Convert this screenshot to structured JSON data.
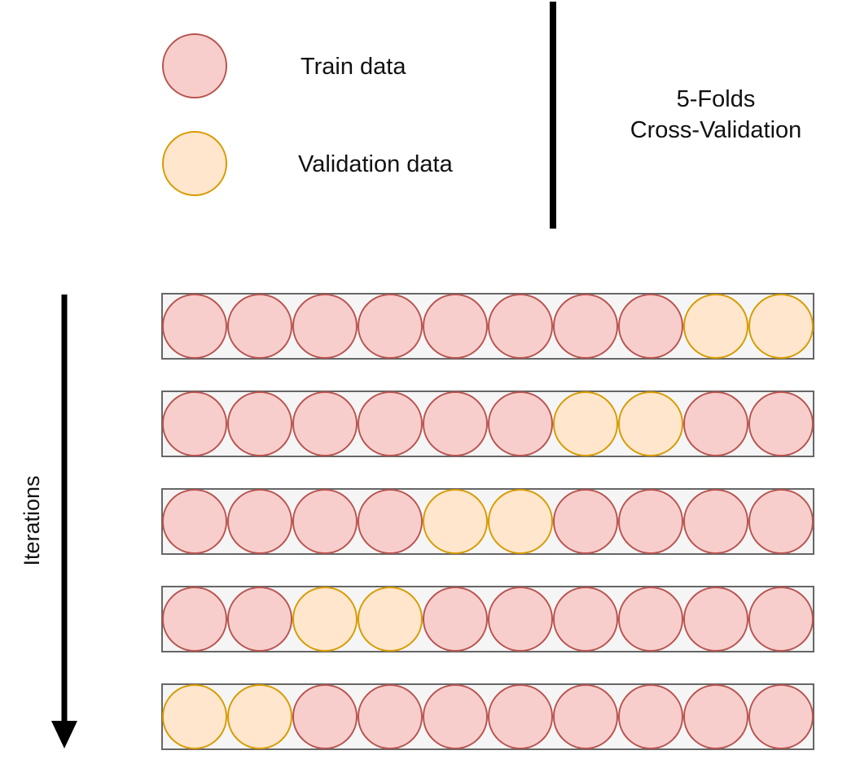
{
  "title_line1": "5-Folds",
  "title_line2": "Cross-Validation",
  "axis_label": "Iterations",
  "legend": [
    {
      "label": "Train data",
      "type": "train"
    },
    {
      "label": "Validation data",
      "type": "validation"
    }
  ],
  "colors": {
    "train_fill": "#f8cecc",
    "train_stroke": "#b85450",
    "validation_fill": "#ffe6cc",
    "validation_stroke": "#d79b00",
    "row_fill": "#f5f5f5",
    "row_stroke": "#666666",
    "line": "#000000"
  },
  "folds": [
    [
      "train",
      "train",
      "train",
      "train",
      "train",
      "train",
      "train",
      "train",
      "validation",
      "validation"
    ],
    [
      "train",
      "train",
      "train",
      "train",
      "train",
      "train",
      "validation",
      "validation",
      "train",
      "train"
    ],
    [
      "train",
      "train",
      "train",
      "train",
      "validation",
      "validation",
      "train",
      "train",
      "train",
      "train"
    ],
    [
      "train",
      "train",
      "validation",
      "validation",
      "train",
      "train",
      "train",
      "train",
      "train",
      "train"
    ],
    [
      "validation",
      "validation",
      "train",
      "train",
      "train",
      "train",
      "train",
      "train",
      "train",
      "train"
    ]
  ]
}
